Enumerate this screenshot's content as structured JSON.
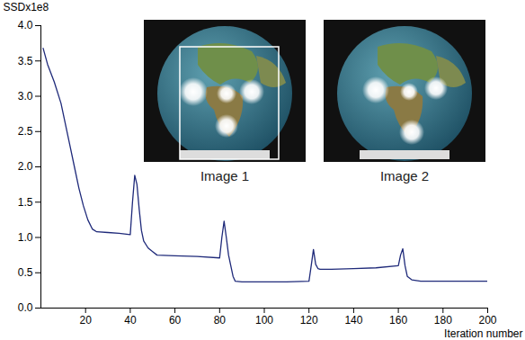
{
  "chart_data": {
    "type": "line",
    "x_label": "Iteration number",
    "y_label": "SSDx1e8",
    "color": "#1f2a7a",
    "annotations": [
      "Image 1",
      "Image 2"
    ],
    "x": [
      1,
      3,
      6,
      9,
      11,
      13,
      15,
      17,
      19,
      21,
      23,
      25,
      30,
      35,
      40,
      41,
      42,
      43,
      44,
      45,
      46,
      48,
      50,
      52,
      60,
      70,
      80,
      81,
      82,
      83,
      84,
      85,
      86,
      87,
      90,
      100,
      110,
      120,
      121,
      122,
      123,
      124,
      125,
      130,
      140,
      150,
      160,
      161,
      162,
      163,
      164,
      166,
      170,
      180,
      190,
      200
    ],
    "values": [
      3.68,
      3.45,
      3.2,
      2.9,
      2.6,
      2.3,
      2.0,
      1.7,
      1.45,
      1.25,
      1.12,
      1.08,
      1.07,
      1.06,
      1.04,
      1.5,
      1.88,
      1.75,
      1.4,
      1.1,
      0.95,
      0.85,
      0.8,
      0.75,
      0.74,
      0.73,
      0.71,
      1.0,
      1.23,
      1.0,
      0.75,
      0.6,
      0.45,
      0.38,
      0.37,
      0.37,
      0.37,
      0.38,
      0.6,
      0.83,
      0.62,
      0.56,
      0.55,
      0.55,
      0.56,
      0.57,
      0.6,
      0.75,
      0.84,
      0.6,
      0.45,
      0.4,
      0.38,
      0.38,
      0.38,
      0.38
    ],
    "xlim": [
      0,
      200
    ],
    "xticks": [
      20,
      40,
      60,
      80,
      100,
      120,
      140,
      160,
      180,
      200
    ],
    "ylim": [
      0,
      4
    ],
    "yticks": [
      {
        "value": 0,
        "label": "0.0"
      },
      {
        "value": 0.5,
        "label": "0.5"
      },
      {
        "value": 1,
        "label": "1.0"
      },
      {
        "value": 1.5,
        "label": "1.5"
      },
      {
        "value": 2,
        "label": "2.0"
      },
      {
        "value": 2.5,
        "label": "2.5"
      },
      {
        "value": 3,
        "label": "3.0"
      },
      {
        "value": 3.5,
        "label": "3.5"
      },
      {
        "value": 4,
        "label": "4.0"
      }
    ],
    "grid": false
  }
}
